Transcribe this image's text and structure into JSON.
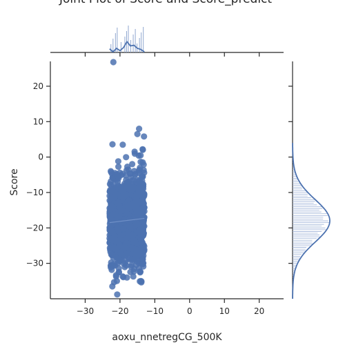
{
  "chart_data": {
    "type": "scatter",
    "title": "Joint Plot of Score and Score_predict",
    "xlabel": "aoxu_nnetregCG_500K",
    "ylabel": "Score",
    "xlim": [
      -40,
      27
    ],
    "ylim": [
      -40,
      27
    ],
    "xticks": [
      -30,
      -20,
      -10,
      0,
      10,
      20
    ],
    "yticks": [
      -30,
      -20,
      -10,
      0,
      10,
      20
    ],
    "xtick_labels": [
      "−30",
      "−20",
      "−10",
      "0",
      "10",
      "20"
    ],
    "ytick_labels": [
      "−30",
      "−20",
      "−10",
      "0",
      "10",
      "20"
    ],
    "grid": false,
    "series_color": "#4c72b0",
    "x_cluster_range": [
      -23,
      -13
    ],
    "y_distribution": {
      "mean": -18,
      "sd": 6,
      "min": -39,
      "max": 27
    },
    "points": [
      {
        "x": -21.9,
        "y": 26.8
      },
      {
        "x": -14.5,
        "y": 8.0
      },
      {
        "x": -15.0,
        "y": 6.5
      },
      {
        "x": -13.1,
        "y": 5.8
      },
      {
        "x": -19.2,
        "y": 3.5
      },
      {
        "x": -13.5,
        "y": 2.2
      },
      {
        "x": -15.8,
        "y": 1.5
      },
      {
        "x": -14.1,
        "y": 0.5
      },
      {
        "x": -20.5,
        "y": -1.2
      },
      {
        "x": -16.5,
        "y": -2.0
      },
      {
        "x": -22.2,
        "y": -36.5
      },
      {
        "x": -20.8,
        "y": -38.8
      },
      {
        "x": -18.0,
        "y": -34.0
      },
      {
        "x": -14.0,
        "y": -35.0
      }
    ],
    "regression": {
      "x": [
        -23,
        -13
      ],
      "y": [
        -18.5,
        -17.3
      ]
    },
    "x_marginal_kde": {
      "x": [
        -23,
        -22,
        -21,
        -20,
        -19,
        -18,
        -17,
        -16,
        -15,
        -14,
        -13
      ],
      "density": [
        0.3,
        0.05,
        0.35,
        0.15,
        0.4,
        0.9,
        0.55,
        0.6,
        0.35,
        0.25,
        0.05
      ]
    },
    "x_marginal_bars": [
      -22.6,
      -22.0,
      -21.3,
      -20.8,
      -19.7,
      -18.6,
      -18.1,
      -17.6,
      -16.9,
      -16.2,
      -15.6,
      -15.1,
      -14.4,
      -13.9,
      -13.3
    ]
  }
}
